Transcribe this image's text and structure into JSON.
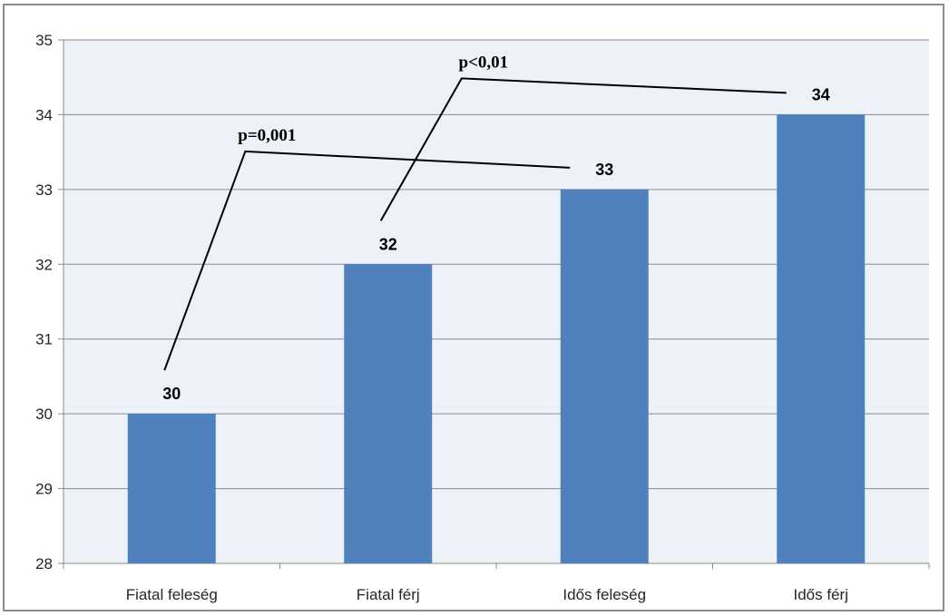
{
  "chart_data": {
    "type": "bar",
    "title": "",
    "xlabel": "",
    "ylabel": "",
    "categories": [
      "Fiatal feleség",
      "Fiatal férj",
      "Idős feleség",
      "Idős férj"
    ],
    "values": [
      30,
      32,
      33,
      34
    ],
    "data_labels": [
      "30",
      "32",
      "33",
      "34"
    ],
    "ylim": [
      28,
      35
    ],
    "yticks": [
      28,
      29,
      30,
      31,
      32,
      33,
      34,
      35
    ],
    "grid": true,
    "legend": "none",
    "bar_color": "#4f81bd",
    "annotations": [
      {
        "text": "p=0,001",
        "from_category": "Fiatal feleség",
        "to_category": "Idős feleség"
      },
      {
        "text": "p<0,01",
        "from_category": "Fiatal férj",
        "to_category": "Idős férj"
      }
    ]
  }
}
